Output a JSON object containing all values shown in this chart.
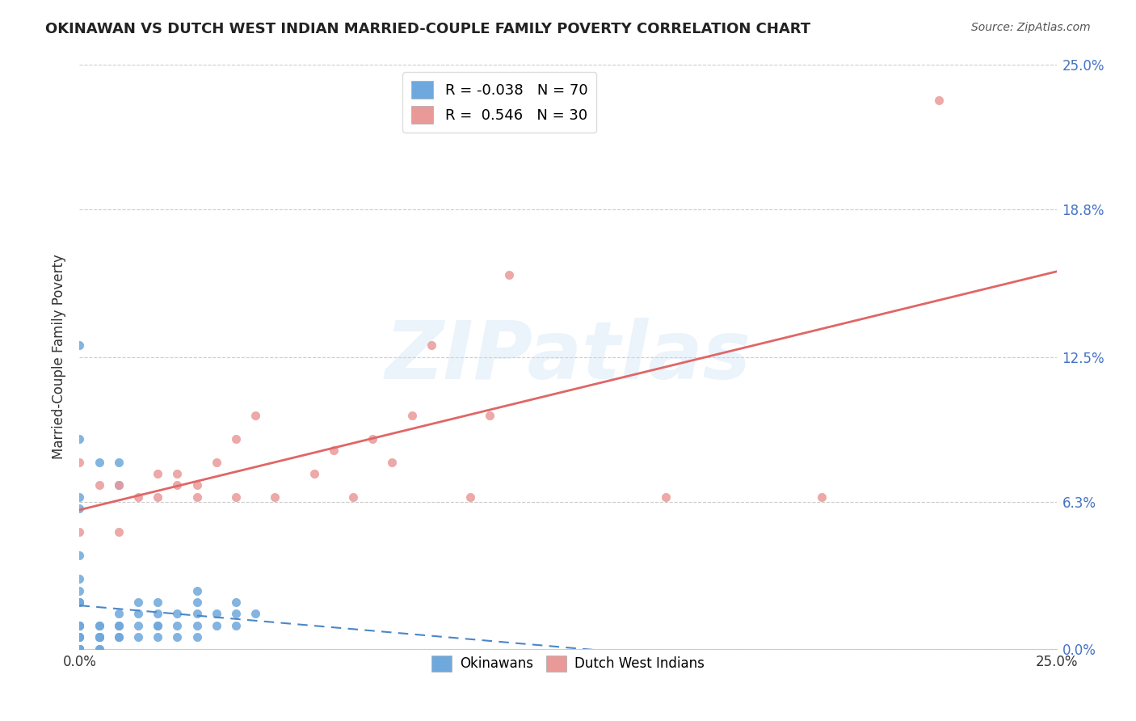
{
  "title": "OKINAWAN VS DUTCH WEST INDIAN MARRIED-COUPLE FAMILY POVERTY CORRELATION CHART",
  "source": "Source: ZipAtlas.com",
  "xlabel": "",
  "ylabel": "Married-Couple Family Poverty",
  "xlim": [
    0.0,
    0.25
  ],
  "ylim": [
    0.0,
    0.25
  ],
  "xticks": [
    0.0,
    0.25
  ],
  "xtick_labels": [
    "0.0%",
    "25.0%"
  ],
  "ytick_labels": [
    "0.0%",
    "6.3%",
    "12.5%",
    "18.8%",
    "25.0%"
  ],
  "ytick_values": [
    0.0,
    0.063,
    0.125,
    0.188,
    0.25
  ],
  "right_ytick_labels": [
    "25.0%",
    "18.8%",
    "12.5%",
    "6.3%",
    "0.0%"
  ],
  "okinawan_color": "#6fa8dc",
  "dutch_color": "#ea9999",
  "okinawan_line_color": "#4a86c8",
  "dutch_line_color": "#e06666",
  "legend_box_color": "#ffffff",
  "watermark": "ZIPatlas",
  "R_okinawan": -0.038,
  "N_okinawan": 70,
  "R_dutch": 0.546,
  "N_dutch": 30,
  "okinawan_x": [
    0.0,
    0.0,
    0.0,
    0.0,
    0.0,
    0.0,
    0.0,
    0.0,
    0.0,
    0.0,
    0.0,
    0.0,
    0.0,
    0.0,
    0.0,
    0.0,
    0.0,
    0.0,
    0.0,
    0.0,
    0.005,
    0.005,
    0.005,
    0.005,
    0.005,
    0.005,
    0.01,
    0.01,
    0.01,
    0.01,
    0.01,
    0.015,
    0.015,
    0.015,
    0.015,
    0.02,
    0.02,
    0.02,
    0.02,
    0.02,
    0.025,
    0.025,
    0.025,
    0.03,
    0.03,
    0.03,
    0.03,
    0.03,
    0.035,
    0.035,
    0.04,
    0.04,
    0.04,
    0.045,
    0.005,
    0.005,
    0.0,
    0.0,
    0.0,
    0.0,
    0.0,
    0.0,
    0.0,
    0.0,
    0.0,
    0.005,
    0.0,
    0.0,
    0.01,
    0.01
  ],
  "okinawan_y": [
    0.0,
    0.0,
    0.0,
    0.0,
    0.0,
    0.0,
    0.0,
    0.0,
    0.0,
    0.0,
    0.0,
    0.0,
    0.005,
    0.005,
    0.005,
    0.005,
    0.01,
    0.01,
    0.01,
    0.01,
    0.005,
    0.005,
    0.005,
    0.005,
    0.01,
    0.01,
    0.005,
    0.005,
    0.01,
    0.01,
    0.015,
    0.005,
    0.01,
    0.015,
    0.02,
    0.005,
    0.01,
    0.01,
    0.015,
    0.02,
    0.005,
    0.01,
    0.015,
    0.005,
    0.01,
    0.015,
    0.02,
    0.025,
    0.01,
    0.015,
    0.01,
    0.015,
    0.02,
    0.015,
    0.0,
    0.0,
    0.03,
    0.04,
    0.02,
    0.02,
    0.02,
    0.02,
    0.025,
    0.06,
    0.065,
    0.08,
    0.09,
    0.13,
    0.07,
    0.08
  ],
  "dutch_x": [
    0.0,
    0.0,
    0.005,
    0.01,
    0.01,
    0.015,
    0.02,
    0.02,
    0.025,
    0.025,
    0.03,
    0.03,
    0.035,
    0.04,
    0.04,
    0.045,
    0.05,
    0.06,
    0.065,
    0.07,
    0.075,
    0.08,
    0.085,
    0.09,
    0.1,
    0.105,
    0.11,
    0.15,
    0.19,
    0.22
  ],
  "dutch_y": [
    0.05,
    0.08,
    0.07,
    0.05,
    0.07,
    0.065,
    0.065,
    0.075,
    0.07,
    0.075,
    0.065,
    0.07,
    0.08,
    0.065,
    0.09,
    0.1,
    0.065,
    0.075,
    0.085,
    0.065,
    0.09,
    0.08,
    0.1,
    0.13,
    0.065,
    0.1,
    0.16,
    0.065,
    0.065,
    0.235
  ]
}
